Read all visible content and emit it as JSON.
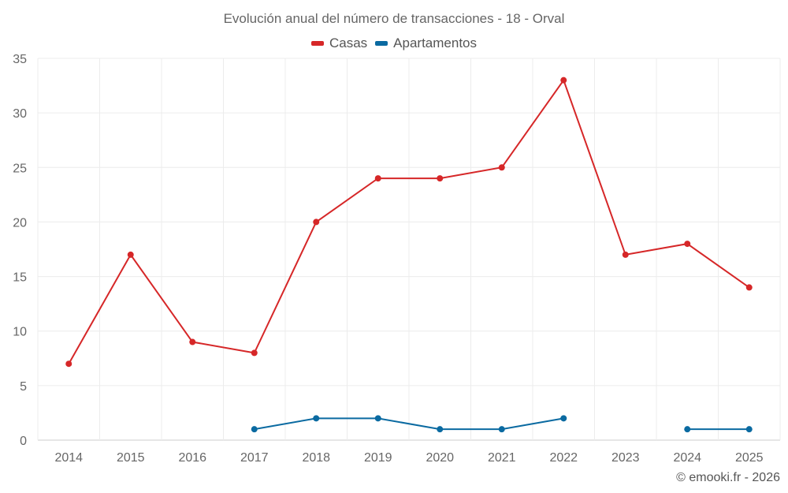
{
  "chart_data": {
    "type": "line",
    "title": "Evolución anual del número de transacciones - 18 - Orval",
    "categories": [
      "2014",
      "2015",
      "2016",
      "2017",
      "2018",
      "2019",
      "2020",
      "2021",
      "2022",
      "2023",
      "2024",
      "2025"
    ],
    "series": [
      {
        "name": "Casas",
        "color": "#d62728",
        "values": [
          7,
          17,
          9,
          8,
          20,
          24,
          24,
          25,
          33,
          17,
          18,
          14
        ]
      },
      {
        "name": "Apartamentos",
        "color": "#0a6aa1",
        "values": [
          null,
          null,
          null,
          1,
          2,
          2,
          1,
          1,
          2,
          null,
          1,
          1
        ]
      }
    ],
    "ylim": [
      0,
      35
    ],
    "yticks": [
      0,
      5,
      10,
      15,
      20,
      25,
      30,
      35
    ],
    "xlabel": "",
    "ylabel": "",
    "grid": true,
    "legend_position": "top-center"
  },
  "credit": "© emooki.fr - 2026"
}
